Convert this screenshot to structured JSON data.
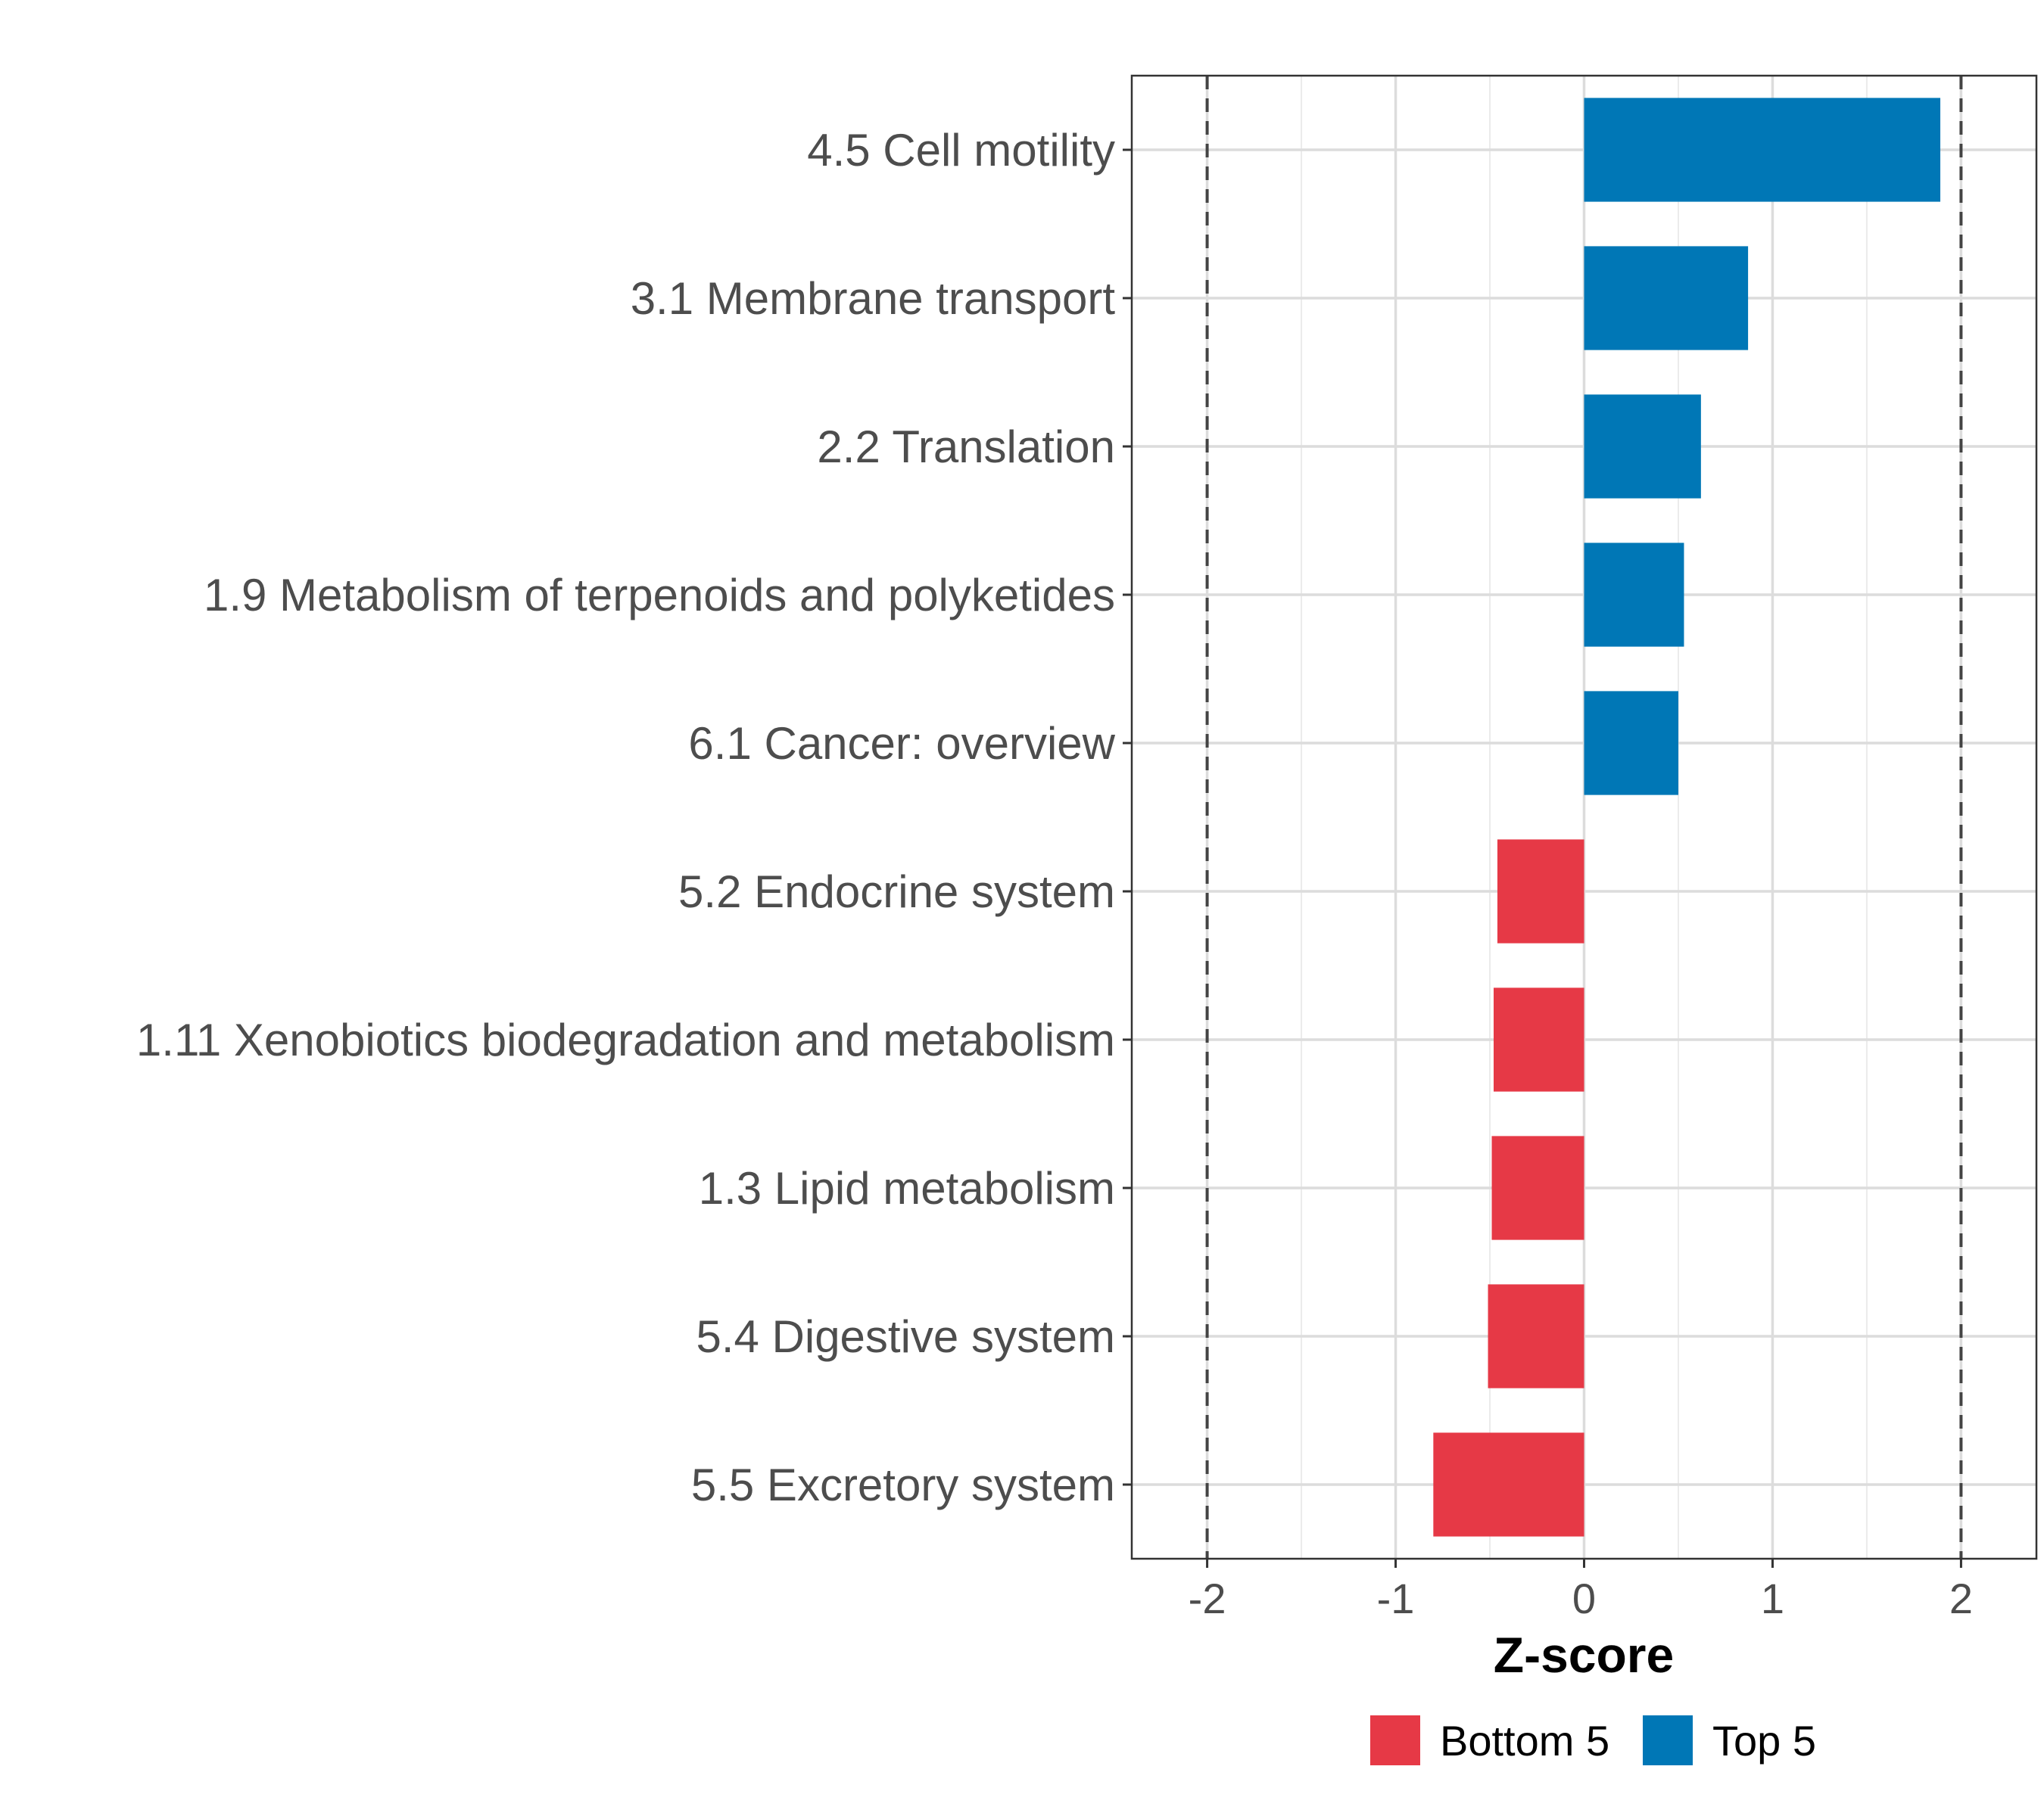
{
  "chart_data": {
    "type": "bar",
    "orientation": "horizontal",
    "categories": [
      "4.5 Cell motility",
      "3.1 Membrane transport",
      "2.2 Translation",
      "1.9 Metabolism of terpenoids and polyketides",
      "6.1 Cancer: overview",
      "5.2 Endocrine system",
      "1.11 Xenobiotics biodegradation and metabolism",
      "1.3 Lipid metabolism",
      "5.4 Digestive system",
      "5.5 Excretory system"
    ],
    "values": [
      1.89,
      0.87,
      0.62,
      0.53,
      0.5,
      -0.46,
      -0.48,
      -0.49,
      -0.51,
      -0.8
    ],
    "groups": [
      "Top 5",
      "Top 5",
      "Top 5",
      "Top 5",
      "Top 5",
      "Bottom 5",
      "Bottom 5",
      "Bottom 5",
      "Bottom 5",
      "Bottom 5"
    ],
    "xlabel": "Z-score",
    "ylabel": "",
    "xlim": [
      -2.4,
      2.4
    ],
    "xticks": [
      -2,
      -1,
      0,
      1,
      2
    ],
    "xtick_labels": [
      "-2",
      "-1",
      "0",
      "1",
      "2"
    ],
    "reference_lines": [
      -2,
      2
    ],
    "grid": true,
    "legend": {
      "position": "bottom",
      "entries": [
        {
          "label": "Bottom 5",
          "color": "#e63946"
        },
        {
          "label": "Top 5",
          "color": "#0077b6"
        }
      ]
    }
  }
}
